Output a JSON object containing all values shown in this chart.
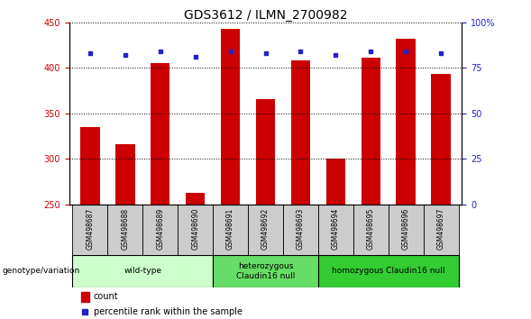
{
  "title": "GDS3612 / ILMN_2700982",
  "samples": [
    "GSM498687",
    "GSM498688",
    "GSM498689",
    "GSM498690",
    "GSM498691",
    "GSM498692",
    "GSM498693",
    "GSM498694",
    "GSM498695",
    "GSM498696",
    "GSM498697"
  ],
  "bar_values": [
    335,
    316,
    405,
    262,
    443,
    366,
    408,
    300,
    411,
    432,
    393
  ],
  "percentile_values": [
    83,
    82,
    84,
    81,
    84,
    83,
    84,
    82,
    84,
    84,
    83
  ],
  "bar_color": "#cc0000",
  "dot_color": "#2222cc",
  "bar_bottom": 250,
  "ylim_left": [
    250,
    450
  ],
  "ylim_right": [
    0,
    100
  ],
  "yticks_left": [
    250,
    300,
    350,
    400,
    450
  ],
  "yticks_right": [
    0,
    25,
    50,
    75,
    100
  ],
  "yticklabels_right": [
    "0",
    "25",
    "50",
    "75",
    "100%"
  ],
  "groups": [
    {
      "label": "wild-type",
      "start": 0,
      "end": 3,
      "color": "#ccffcc"
    },
    {
      "label": "heterozygous\nClaudin16 null",
      "start": 4,
      "end": 6,
      "color": "#66dd66"
    },
    {
      "label": "homozygous Claudin16 null",
      "start": 7,
      "end": 10,
      "color": "#33cc33"
    }
  ],
  "genotype_label": "genotype/variation",
  "legend_count_label": "count",
  "legend_percentile_label": "percentile rank within the sample",
  "background_color": "#ffffff",
  "plot_bg_color": "#ffffff",
  "title_fontsize": 10,
  "tick_fontsize": 7,
  "sample_box_color": "#cccccc"
}
